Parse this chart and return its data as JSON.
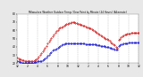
{
  "title": "Milwaukee Weather Outdoor Temp / Dew Point by Minute (24 Hours) (Alternate)",
  "bg_color": "#e8e8e8",
  "plot_bg": "#ffffff",
  "grid_color": "#888888",
  "temp_color": "#cc0000",
  "dew_color": "#0000cc",
  "ylim": [
    20,
    80
  ],
  "xlim": [
    0,
    1440
  ],
  "yticks": [
    20,
    30,
    40,
    50,
    60,
    70,
    80
  ],
  "ytick_labels": [
    "20",
    "30",
    "40",
    "50",
    "60",
    "70",
    "80"
  ],
  "xtick_positions": [
    0,
    120,
    240,
    360,
    480,
    600,
    720,
    840,
    960,
    1080,
    1200,
    1320,
    1440
  ],
  "xtick_labels": [
    "12",
    "2",
    "4",
    "6",
    "8",
    "10",
    "12",
    "2",
    "4",
    "6",
    "8",
    "10",
    "12"
  ],
  "temp_x": [
    0,
    15,
    30,
    45,
    60,
    75,
    90,
    105,
    120,
    135,
    150,
    165,
    180,
    195,
    210,
    225,
    240,
    255,
    270,
    285,
    300,
    315,
    330,
    345,
    360,
    375,
    390,
    405,
    420,
    435,
    450,
    465,
    480,
    495,
    510,
    525,
    540,
    555,
    570,
    585,
    600,
    615,
    630,
    645,
    660,
    675,
    690,
    705,
    720,
    735,
    750,
    765,
    780,
    795,
    810,
    825,
    840,
    855,
    870,
    885,
    900,
    915,
    930,
    945,
    960,
    975,
    990,
    1005,
    1020,
    1035,
    1050,
    1065,
    1080,
    1095,
    1110,
    1125,
    1140,
    1155,
    1170,
    1185,
    1200,
    1215,
    1230,
    1245,
    1260,
    1275,
    1290,
    1305,
    1320,
    1335,
    1350,
    1365,
    1380,
    1395,
    1410,
    1425,
    1440
  ],
  "temp_y": [
    27,
    26,
    25,
    25,
    24,
    24,
    23,
    23,
    23,
    22,
    22,
    22,
    22,
    23,
    24,
    25,
    26,
    28,
    30,
    32,
    34,
    36,
    39,
    41,
    44,
    46,
    48,
    51,
    53,
    55,
    57,
    59,
    60,
    62,
    63,
    64,
    65,
    66,
    67,
    68,
    68,
    69,
    69,
    70,
    70,
    70,
    69,
    69,
    68,
    68,
    67,
    67,
    66,
    66,
    65,
    64,
    63,
    62,
    62,
    61,
    60,
    59,
    58,
    57,
    56,
    55,
    54,
    53,
    52,
    51,
    50,
    49,
    48,
    47,
    45,
    44,
    43,
    42,
    40,
    39,
    48,
    50,
    52,
    53,
    54,
    55,
    55,
    56,
    56,
    56,
    57,
    57,
    57,
    57,
    57,
    57,
    57
  ],
  "dew_x": [
    0,
    15,
    30,
    45,
    60,
    75,
    90,
    105,
    120,
    135,
    150,
    165,
    180,
    195,
    210,
    225,
    240,
    255,
    270,
    285,
    300,
    315,
    330,
    345,
    360,
    375,
    390,
    405,
    420,
    435,
    450,
    465,
    480,
    495,
    510,
    525,
    540,
    555,
    570,
    585,
    600,
    615,
    630,
    645,
    660,
    675,
    690,
    705,
    720,
    735,
    750,
    765,
    780,
    795,
    810,
    825,
    840,
    855,
    870,
    885,
    900,
    915,
    930,
    945,
    960,
    975,
    990,
    1005,
    1020,
    1035,
    1050,
    1065,
    1080,
    1095,
    1110,
    1125,
    1140,
    1155,
    1170,
    1185,
    1200,
    1215,
    1230,
    1245,
    1260,
    1275,
    1290,
    1305,
    1320,
    1335,
    1350,
    1365,
    1380,
    1395,
    1410,
    1425,
    1440
  ],
  "dew_y": [
    22,
    22,
    21,
    21,
    20,
    20,
    20,
    20,
    20,
    20,
    20,
    20,
    20,
    20,
    21,
    21,
    22,
    22,
    23,
    23,
    24,
    25,
    26,
    27,
    29,
    30,
    32,
    33,
    35,
    36,
    37,
    38,
    39,
    40,
    41,
    42,
    43,
    43,
    44,
    44,
    44,
    44,
    44,
    44,
    44,
    44,
    44,
    44,
    44,
    44,
    44,
    44,
    44,
    44,
    43,
    43,
    43,
    43,
    43,
    43,
    43,
    43,
    43,
    42,
    42,
    42,
    41,
    41,
    41,
    41,
    40,
    40,
    40,
    39,
    39,
    38,
    38,
    37,
    37,
    36,
    41,
    42,
    43,
    43,
    44,
    44,
    44,
    44,
    45,
    45,
    45,
    45,
    45,
    45,
    45,
    45,
    45
  ]
}
